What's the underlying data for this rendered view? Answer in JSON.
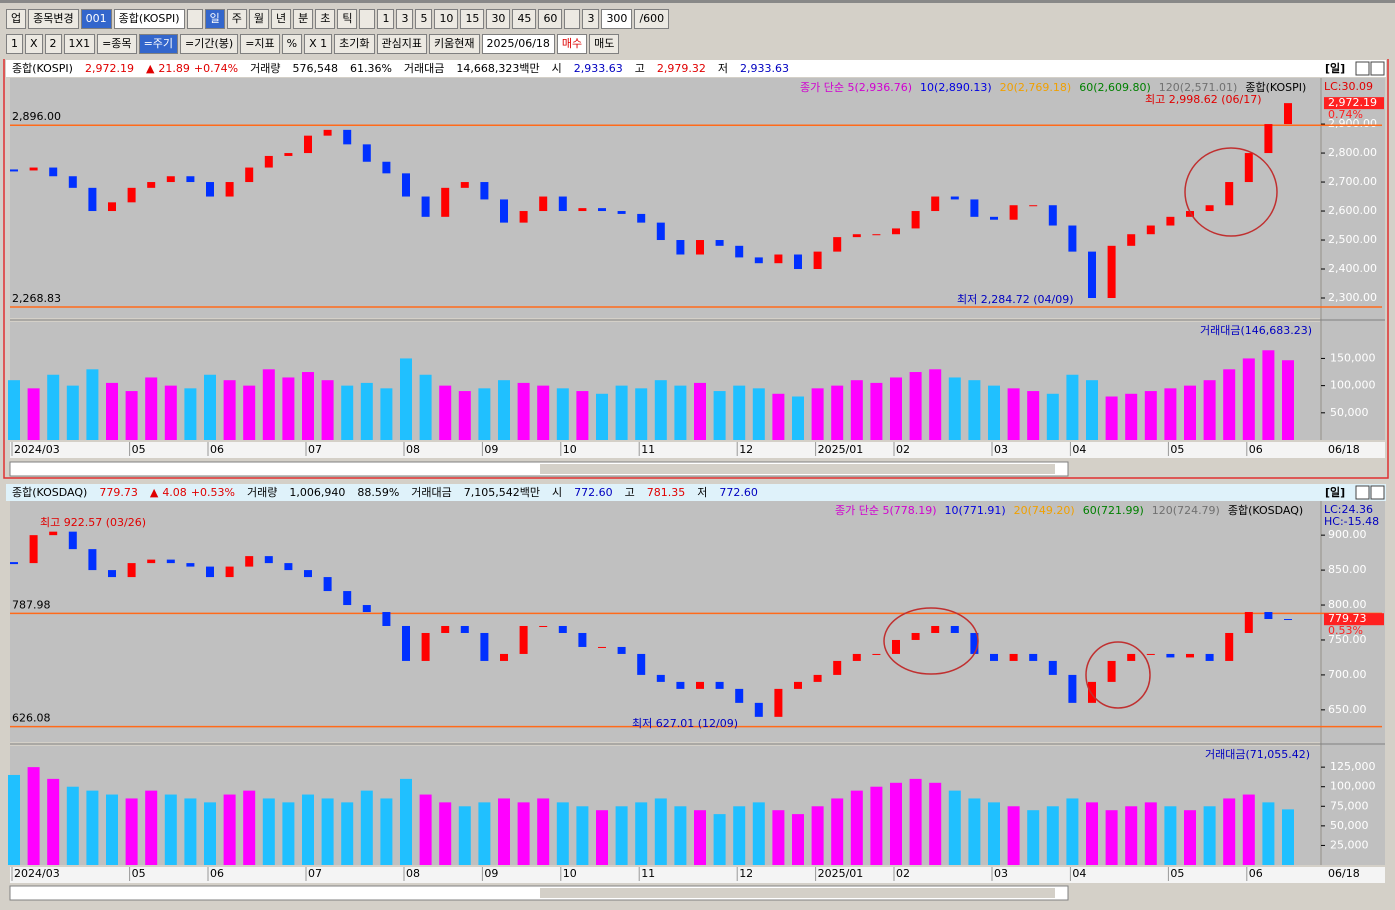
{
  "toolbar": {
    "row1": [
      "업",
      "종목변경",
      "001",
      "종합(KOSPI)",
      "일",
      "주",
      "월",
      "년",
      "분",
      "초",
      "틱",
      "1",
      "3",
      "5",
      "10",
      "15",
      "30",
      "45",
      "60",
      "3",
      "300",
      "/600"
    ],
    "row2": [
      "1",
      "X",
      "2",
      "1X1",
      "=종목",
      "=주기",
      "=기간(봉)",
      "=지표",
      "%",
      "X 1",
      "초기화",
      "관심지표",
      "키움현재",
      "2025/06/18",
      "매수",
      "매도"
    ]
  },
  "panels": [
    {
      "items": [
        {
          "text": "종합(KOSPI)",
          "color": "#000"
        },
        {
          "text": "2,972.19",
          "color": "#e00000"
        },
        {
          "text": "▲",
          "color": "#e00000"
        },
        {
          "text": "21.89",
          "color": "#e00000"
        },
        {
          "text": "+0.74%",
          "color": "#e00000"
        },
        {
          "text": "거래량",
          "color": "#000"
        },
        {
          "text": "576,548",
          "color": "#000"
        },
        {
          "text": "61.36%",
          "color": "#000"
        },
        {
          "text": "거래대금",
          "color": "#000"
        },
        {
          "text": "14,668,323백만",
          "color": "#000"
        },
        {
          "text": "시",
          "color": "#000"
        },
        {
          "text": "2,933.63",
          "color": "#0000c0"
        },
        {
          "text": "고",
          "color": "#000"
        },
        {
          "text": "2,979.32",
          "color": "#e00000"
        },
        {
          "text": "저",
          "color": "#000"
        },
        {
          "text": "2,933.63",
          "color": "#0000c0"
        }
      ],
      "period": "[일]"
    },
    {
      "items": [
        {
          "text": "종합(KOSDAQ)",
          "color": "#000"
        },
        {
          "text": "779.73",
          "color": "#e00000"
        },
        {
          "text": "▲",
          "color": "#e00000"
        },
        {
          "text": "4.08",
          "color": "#e00000"
        },
        {
          "text": "+0.53%",
          "color": "#e00000"
        },
        {
          "text": "거래량",
          "color": "#000"
        },
        {
          "text": "1,006,940",
          "color": "#000"
        },
        {
          "text": "88.59%",
          "color": "#000"
        },
        {
          "text": "거래대금",
          "color": "#000"
        },
        {
          "text": "7,105,542백만",
          "color": "#000"
        },
        {
          "text": "시",
          "color": "#000"
        },
        {
          "text": "772.60",
          "color": "#0000c0"
        },
        {
          "text": "고",
          "color": "#000"
        },
        {
          "text": "781.35",
          "color": "#e00000"
        },
        {
          "text": "저",
          "color": "#000"
        },
        {
          "text": "772.60",
          "color": "#0000c0"
        }
      ],
      "period": "[일]"
    }
  ],
  "chart_data": [
    {
      "type": "candle",
      "up_color": "#ff0000",
      "down_color": "#0030ff",
      "values": [
        2740,
        2750,
        2720,
        2680,
        2600,
        2630,
        2680,
        2700,
        2720,
        2700,
        2650,
        2700,
        2750,
        2790,
        2800,
        2860,
        2880,
        2830,
        2770,
        2730,
        2650,
        2580,
        2680,
        2700,
        2640,
        2560,
        2600,
        2650,
        2600,
        2610,
        2600,
        2590,
        2560,
        2500,
        2450,
        2500,
        2480,
        2440,
        2420,
        2450,
        2400,
        2460,
        2510,
        2520,
        2520,
        2540,
        2600,
        2650,
        2640,
        2580,
        2570,
        2620,
        2620,
        2550,
        2460,
        2300,
        2480,
        2520,
        2550,
        2580,
        2600,
        2620,
        2700,
        2800,
        2900,
        2972.19
      ],
      "ylim": [
        2231,
        3052
      ],
      "yticks": [
        {
          "value": 2300,
          "label": "2,300.00"
        },
        {
          "value": 2400,
          "label": "2,400.00"
        },
        {
          "value": 2500,
          "label": "2,500.00"
        },
        {
          "value": 2600,
          "label": "2,600.00"
        },
        {
          "value": 2700,
          "label": "2,700.00"
        },
        {
          "value": 2800,
          "label": "2,800.00"
        },
        {
          "value": 2900,
          "label": "2,900.00"
        }
      ],
      "hlines": [
        {
          "value": 2896,
          "label": "2,896.00"
        },
        {
          "value": 2268.83,
          "label": "2,268.83"
        }
      ],
      "legend": [
        {
          "text": "종가 단순 5(2,936.76)",
          "color": "#d000d0"
        },
        {
          "text": "10(2,890.13)",
          "color": "#0000e0"
        },
        {
          "text": "20(2,769.18)",
          "color": "#f0a000"
        },
        {
          "text": "60(2,609.80)",
          "color": "#008000"
        },
        {
          "text": "120(2,571.01)",
          "color": "#707070"
        },
        {
          "text": "종합(KOSPI)",
          "color": "#000"
        }
      ],
      "side": [
        "LC:30.09"
      ],
      "last_label": "2,972.19",
      "change_label": "0.74%",
      "annotations": [
        {
          "text": "최고 2,998.62 (06/17)",
          "color": "#e00000"
        },
        {
          "text": "최저 2,284.72 (04/09)",
          "color": "#0000c0"
        }
      ]
    },
    {
      "type": "bar",
      "up_color": "#ff00ff",
      "down_color": "#20c0ff",
      "values": [
        110000,
        95000,
        120000,
        100000,
        130000,
        105000,
        90000,
        115000,
        100000,
        95000,
        120000,
        110000,
        100000,
        130000,
        115000,
        125000,
        110000,
        100000,
        105000,
        95000,
        150000,
        120000,
        100000,
        90000,
        95000,
        110000,
        105000,
        100000,
        95000,
        90000,
        85000,
        100000,
        95000,
        110000,
        100000,
        105000,
        90000,
        100000,
        95000,
        85000,
        80000,
        95000,
        100000,
        110000,
        105000,
        115000,
        125000,
        130000,
        115000,
        110000,
        100000,
        95000,
        90000,
        85000,
        120000,
        110000,
        80000,
        85000,
        90000,
        95000,
        100000,
        110000,
        130000,
        150000,
        165000,
        146683.23
      ],
      "ylim": [
        0,
        217000
      ],
      "yticks": [
        {
          "value": 50000,
          "label": "50,000"
        },
        {
          "value": 100000,
          "label": "100,000"
        },
        {
          "value": 150000,
          "label": "150,000"
        }
      ],
      "legend": "거래대금(146,683.23)",
      "categories": [
        "2024/03",
        null,
        null,
        null,
        null,
        null,
        "05",
        null,
        null,
        null,
        "06",
        null,
        null,
        null,
        null,
        "07",
        null,
        null,
        null,
        null,
        "08",
        null,
        null,
        null,
        "09",
        null,
        null,
        null,
        "10",
        null,
        null,
        null,
        "11",
        null,
        null,
        null,
        null,
        "12",
        null,
        null,
        null,
        "2025/01",
        null,
        null,
        null,
        "02",
        null,
        null,
        null,
        null,
        "03",
        null,
        null,
        null,
        "04",
        null,
        null,
        null,
        null,
        "05",
        null,
        null,
        null,
        "06",
        null,
        null
      ],
      "last_date": "06/18"
    },
    {
      "type": "candle",
      "up_color": "#ff0000",
      "down_color": "#0030ff",
      "values": [
        860,
        900,
        905,
        880,
        850,
        840,
        860,
        865,
        860,
        855,
        840,
        855,
        870,
        860,
        850,
        840,
        820,
        800,
        790,
        770,
        720,
        760,
        770,
        760,
        720,
        730,
        770,
        770,
        760,
        740,
        740,
        730,
        700,
        690,
        680,
        690,
        680,
        660,
        640,
        680,
        690,
        700,
        720,
        730,
        730,
        750,
        760,
        770,
        760,
        730,
        720,
        730,
        720,
        700,
        660,
        690,
        720,
        730,
        730,
        725,
        730,
        720,
        760,
        790,
        780,
        779.73
      ],
      "ylim": [
        604,
        946
      ],
      "yticks": [
        {
          "value": 650,
          "label": "650.00"
        },
        {
          "value": 700,
          "label": "700.00"
        },
        {
          "value": 750,
          "label": "750.00"
        },
        {
          "value": 800,
          "label": "800.00"
        },
        {
          "value": 850,
          "label": "850.00"
        },
        {
          "value": 900,
          "label": "900.00"
        }
      ],
      "hlines": [
        {
          "value": 787.98,
          "label": "787.98"
        },
        {
          "value": 626.08,
          "label": "626.08"
        }
      ],
      "legend": [
        {
          "text": "종가 단순 5(778.19)",
          "color": "#d000d0"
        },
        {
          "text": "10(771.91)",
          "color": "#0000e0"
        },
        {
          "text": "20(749.20)",
          "color": "#f0a000"
        },
        {
          "text": "60(721.99)",
          "color": "#008000"
        },
        {
          "text": "120(724.79)",
          "color": "#707070"
        },
        {
          "text": "종합(KOSDAQ)",
          "color": "#000"
        }
      ],
      "side": [
        "LC:24.36",
        "HC:-15.48"
      ],
      "last_label": "779.73",
      "change_label": "0.53%",
      "annotations": [
        {
          "text": "최고 922.57 (03/26)",
          "color": "#e00000"
        },
        {
          "text": "최저 627.01 (12/09)",
          "color": "#0000c0"
        }
      ]
    },
    {
      "type": "bar",
      "up_color": "#ff00ff",
      "down_color": "#20c0ff",
      "values": [
        115000,
        125000,
        110000,
        100000,
        95000,
        90000,
        85000,
        95000,
        90000,
        85000,
        80000,
        90000,
        95000,
        85000,
        80000,
        90000,
        85000,
        80000,
        95000,
        85000,
        110000,
        90000,
        80000,
        75000,
        80000,
        85000,
        80000,
        85000,
        80000,
        75000,
        70000,
        75000,
        80000,
        85000,
        75000,
        70000,
        65000,
        75000,
        80000,
        70000,
        65000,
        75000,
        85000,
        95000,
        100000,
        105000,
        110000,
        105000,
        95000,
        85000,
        80000,
        75000,
        70000,
        75000,
        85000,
        80000,
        70000,
        75000,
        80000,
        75000,
        70000,
        75000,
        85000,
        90000,
        80000,
        71055.42
      ],
      "ylim": [
        0,
        152000
      ],
      "yticks": [
        {
          "value": 25000,
          "label": "25,000"
        },
        {
          "value": 50000,
          "label": "50,000"
        },
        {
          "value": 75000,
          "label": "75,000"
        },
        {
          "value": 100000,
          "label": "100,000"
        },
        {
          "value": 125000,
          "label": "125,000"
        }
      ],
      "legend": "거래대금(71,055.42)",
      "categories": [
        "2024/03",
        null,
        null,
        null,
        null,
        null,
        "05",
        null,
        null,
        null,
        "06",
        null,
        null,
        null,
        null,
        "07",
        null,
        null,
        null,
        null,
        "08",
        null,
        null,
        null,
        "09",
        null,
        null,
        null,
        "10",
        null,
        null,
        null,
        "11",
        null,
        null,
        null,
        null,
        "12",
        null,
        null,
        null,
        "2025/01",
        null,
        null,
        null,
        "02",
        null,
        null,
        null,
        null,
        "03",
        null,
        null,
        null,
        "04",
        null,
        null,
        null,
        null,
        "05",
        null,
        null,
        null,
        "06",
        null,
        null
      ],
      "last_date": "06/18"
    }
  ]
}
